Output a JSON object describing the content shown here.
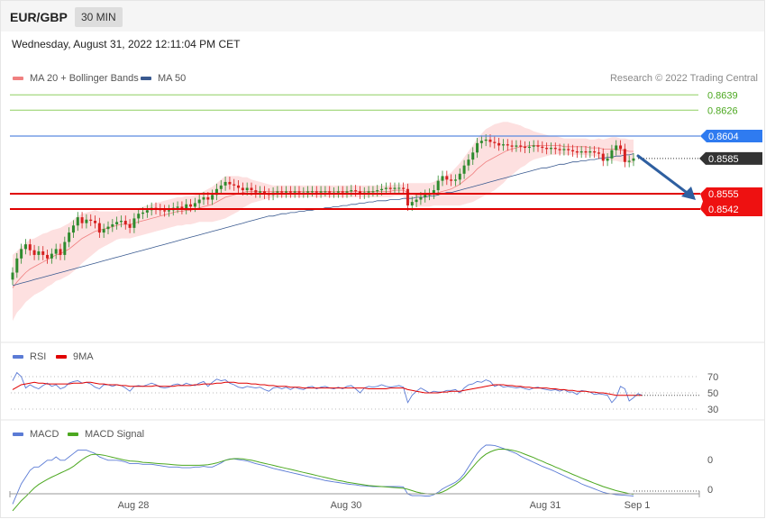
{
  "header": {
    "pair": "EUR/GBP",
    "timeframe": "30 MIN"
  },
  "date_text": "Wednesday, August 31, 2022 12:11:04 PM CET",
  "credit": "Research © 2022 Trading Central",
  "colors": {
    "ma20": "#f08080",
    "ma50": "#3a5a90",
    "rsi": "#5b7bd5",
    "rsi_ma": "#e00000",
    "macd": "#5b7bd5",
    "macd_signal": "#4ca820",
    "bull": "#2e8b2e",
    "bear": "#d62020",
    "resistance": "#8fcf60",
    "pivot": "#5a8ae0",
    "support": "#e00000",
    "band_fill": "#fcd6d6",
    "arrow": "#2e5fa0"
  },
  "chart_data": [
    {
      "type": "candlestick",
      "legend": [
        "MA 20 + Bollinger Bands",
        "MA 50"
      ],
      "legend_placement": "top-left",
      "x_ticks": [
        "Aug 28",
        "Aug 30",
        "Aug 31",
        "Sep 1"
      ],
      "ylim": [
        0.847,
        0.865
      ],
      "grid": false,
      "levels": [
        {
          "label": "0.8639",
          "value": 0.8639,
          "kind": "resistance"
        },
        {
          "label": "0.8626",
          "value": 0.8626,
          "kind": "resistance"
        },
        {
          "label": "0.8604",
          "value": 0.8604,
          "kind": "pivot"
        },
        {
          "label": "0.8585",
          "value": 0.8585,
          "kind": "current"
        },
        {
          "label": "0.8555",
          "value": 0.8555,
          "kind": "support"
        },
        {
          "label": "0.8542",
          "value": 0.8542,
          "kind": "support"
        }
      ],
      "close": [
        0.8488,
        0.85,
        0.8508,
        0.8512,
        0.8507,
        0.8503,
        0.8506,
        0.8503,
        0.85,
        0.8504,
        0.8508,
        0.8503,
        0.8514,
        0.8522,
        0.8528,
        0.8535,
        0.853,
        0.8533,
        0.8532,
        0.853,
        0.8522,
        0.8525,
        0.8527,
        0.8529,
        0.8531,
        0.8532,
        0.8529,
        0.8526,
        0.8534,
        0.8538,
        0.8539,
        0.8541,
        0.8543,
        0.8542,
        0.8541,
        0.854,
        0.8541,
        0.8543,
        0.8544,
        0.8542,
        0.8546,
        0.8544,
        0.8547,
        0.855,
        0.8552,
        0.855,
        0.8554,
        0.8559,
        0.8562,
        0.8565,
        0.8563,
        0.8562,
        0.856,
        0.8558,
        0.856,
        0.8558,
        0.8556,
        0.8557,
        0.8555,
        0.8554,
        0.8556,
        0.8557,
        0.8556,
        0.8557,
        0.8556,
        0.8557,
        0.8556,
        0.8556,
        0.8557,
        0.8557,
        0.8556,
        0.8557,
        0.8557,
        0.8556,
        0.8556,
        0.8557,
        0.8556,
        0.8557,
        0.8558,
        0.8557,
        0.8555,
        0.8556,
        0.8557,
        0.8557,
        0.8558,
        0.8559,
        0.856,
        0.8559,
        0.856,
        0.856,
        0.8559,
        0.8545,
        0.8548,
        0.855,
        0.8552,
        0.8554,
        0.8555,
        0.8558,
        0.8566,
        0.857,
        0.8567,
        0.8566,
        0.8567,
        0.8572,
        0.8579,
        0.8584,
        0.859,
        0.8598,
        0.86,
        0.8601,
        0.8599,
        0.8598,
        0.8596,
        0.8597,
        0.8596,
        0.8595,
        0.8596,
        0.8595,
        0.8594,
        0.8595,
        0.8596,
        0.8595,
        0.8594,
        0.8593,
        0.8594,
        0.8593,
        0.8592,
        0.8593,
        0.8592,
        0.8591,
        0.859,
        0.8591,
        0.859,
        0.8591,
        0.859,
        0.8589,
        0.8583,
        0.8585,
        0.8592,
        0.8596,
        0.8593,
        0.8582,
        0.8583,
        0.8585
      ],
      "ma20": [
        0.8475,
        0.848,
        0.8484,
        0.8488,
        0.8491,
        0.8493,
        0.8495,
        0.8497,
        0.8499,
        0.8501,
        0.8503,
        0.8504,
        0.8506,
        0.8508,
        0.8511,
        0.8514,
        0.8517,
        0.8519,
        0.8521,
        0.8523,
        0.8524,
        0.8525,
        0.8526,
        0.8527,
        0.8528,
        0.8529,
        0.8529,
        0.8529,
        0.853,
        0.8531,
        0.8532,
        0.8533,
        0.8534,
        0.8535,
        0.8536,
        0.8537,
        0.8538,
        0.8539,
        0.854,
        0.854,
        0.8541,
        0.8541,
        0.8542,
        0.8543,
        0.8544,
        0.8545,
        0.8546,
        0.8548,
        0.855,
        0.8552,
        0.8553,
        0.8554,
        0.8555,
        0.8556,
        0.8557,
        0.8557,
        0.8557,
        0.8557,
        0.8557,
        0.8557,
        0.8557,
        0.8557,
        0.8557,
        0.8557,
        0.8557,
        0.8557,
        0.8557,
        0.8557,
        0.8557,
        0.8557,
        0.8557,
        0.8557,
        0.8557,
        0.8557,
        0.8557,
        0.8557,
        0.8557,
        0.8557,
        0.8557,
        0.8557,
        0.8557,
        0.8557,
        0.8557,
        0.8557,
        0.8557,
        0.8557,
        0.8557,
        0.8557,
        0.8558,
        0.8558,
        0.8558,
        0.8556,
        0.8555,
        0.8554,
        0.8554,
        0.8554,
        0.8554,
        0.8555,
        0.8556,
        0.8557,
        0.8558,
        0.8559,
        0.8561,
        0.8563,
        0.8566,
        0.8569,
        0.8572,
        0.8576,
        0.8579,
        0.8582,
        0.8584,
        0.8586,
        0.8588,
        0.859,
        0.8592,
        0.8593,
        0.8594,
        0.8595,
        0.8595,
        0.8596,
        0.8596,
        0.8596,
        0.8596,
        0.8596,
        0.8596,
        0.8596,
        0.8596,
        0.8595,
        0.8595,
        0.8595,
        0.8595,
        0.8595,
        0.8595,
        0.8594,
        0.8594,
        0.8594,
        0.8593,
        0.8593,
        0.8593,
        0.8593,
        0.8592,
        0.8592,
        0.8591,
        0.8591
      ],
      "band_width": [
        0.0028,
        0.0026,
        0.0026,
        0.0025,
        0.0025,
        0.0024,
        0.0024,
        0.0024,
        0.0023,
        0.0023,
        0.0022,
        0.0022,
        0.0022,
        0.0022,
        0.0022,
        0.0022,
        0.0021,
        0.002,
        0.0019,
        0.0018,
        0.0016,
        0.0015,
        0.0014,
        0.0013,
        0.0012,
        0.0012,
        0.0012,
        0.0012,
        0.0012,
        0.0012,
        0.0012,
        0.0012,
        0.0012,
        0.0012,
        0.0012,
        0.0012,
        0.0012,
        0.0012,
        0.0012,
        0.0012,
        0.0012,
        0.0012,
        0.0012,
        0.0012,
        0.0013,
        0.0014,
        0.0015,
        0.0016,
        0.0017,
        0.0018,
        0.0017,
        0.0016,
        0.0015,
        0.0013,
        0.0012,
        0.001,
        0.0009,
        0.0008,
        0.0007,
        0.0006,
        0.0005,
        0.0005,
        0.0005,
        0.0005,
        0.0005,
        0.0005,
        0.0005,
        0.0005,
        0.0005,
        0.0005,
        0.0005,
        0.0005,
        0.0005,
        0.0005,
        0.0005,
        0.0005,
        0.0005,
        0.0005,
        0.0005,
        0.0005,
        0.0005,
        0.0005,
        0.0005,
        0.0005,
        0.0005,
        0.0005,
        0.0005,
        0.0005,
        0.0005,
        0.0005,
        0.0005,
        0.0008,
        0.0009,
        0.001,
        0.001,
        0.001,
        0.001,
        0.001,
        0.0011,
        0.0012,
        0.0013,
        0.0014,
        0.0016,
        0.0018,
        0.002,
        0.0022,
        0.0024,
        0.0026,
        0.0027,
        0.0028,
        0.0028,
        0.0028,
        0.0027,
        0.0026,
        0.0024,
        0.0022,
        0.002,
        0.0018,
        0.0016,
        0.0014,
        0.0012,
        0.0011,
        0.001,
        0.0009,
        0.0008,
        0.0008,
        0.0007,
        0.0007,
        0.0007,
        0.0007,
        0.0007,
        0.0007,
        0.0007,
        0.0007,
        0.0007,
        0.0008,
        0.0008,
        0.0009,
        0.001,
        0.001,
        0.001,
        0.001,
        0.001,
        0.001
      ],
      "ma50": [
        0.8477,
        0.8478,
        0.8479,
        0.848,
        0.8481,
        0.8482,
        0.8483,
        0.8484,
        0.8485,
        0.8486,
        0.8487,
        0.8488,
        0.8489,
        0.849,
        0.8491,
        0.8492,
        0.8493,
        0.8494,
        0.8495,
        0.8496,
        0.8497,
        0.8498,
        0.8499,
        0.85,
        0.8501,
        0.8502,
        0.8503,
        0.8504,
        0.8505,
        0.8506,
        0.8507,
        0.8508,
        0.8509,
        0.851,
        0.8511,
        0.8512,
        0.8513,
        0.8514,
        0.8515,
        0.8516,
        0.8517,
        0.8518,
        0.8519,
        0.852,
        0.8521,
        0.8522,
        0.8523,
        0.8524,
        0.8525,
        0.8526,
        0.8527,
        0.8528,
        0.8529,
        0.853,
        0.8531,
        0.8532,
        0.8533,
        0.8534,
        0.8535,
        0.8536,
        0.8536,
        0.8537,
        0.8538,
        0.8538,
        0.8539,
        0.8539,
        0.854,
        0.854,
        0.8541,
        0.8541,
        0.8542,
        0.8542,
        0.8543,
        0.8543,
        0.8544,
        0.8544,
        0.8545,
        0.8545,
        0.8546,
        0.8546,
        0.8547,
        0.8547,
        0.8548,
        0.8548,
        0.8549,
        0.8549,
        0.8549,
        0.855,
        0.855,
        0.855,
        0.8551,
        0.8551,
        0.8551,
        0.8552,
        0.8552,
        0.8552,
        0.8553,
        0.8553,
        0.8554,
        0.8555,
        0.8556,
        0.8556,
        0.8557,
        0.8558,
        0.8559,
        0.856,
        0.8561,
        0.8562,
        0.8563,
        0.8564,
        0.8565,
        0.8566,
        0.8567,
        0.8568,
        0.8569,
        0.857,
        0.8571,
        0.8572,
        0.8573,
        0.8574,
        0.8575,
        0.8576,
        0.8577,
        0.8577,
        0.8578,
        0.8579,
        0.858,
        0.858,
        0.8581,
        0.8582,
        0.8582,
        0.8583,
        0.8583,
        0.8584,
        0.8584,
        0.8585,
        0.8585,
        0.8586,
        0.8586,
        0.8587,
        0.8587,
        0.8588,
        0.8588,
        0.8589
      ]
    },
    {
      "type": "line",
      "legend": [
        "RSI",
        "9MA"
      ],
      "legend_placement": "top-left",
      "yticks": [
        70,
        50,
        30
      ],
      "ylim": [
        25,
        80
      ],
      "rsi": [
        65,
        75,
        70,
        56,
        60,
        57,
        55,
        59,
        62,
        58,
        60,
        55,
        57,
        62,
        64,
        65,
        62,
        63,
        61,
        57,
        55,
        60,
        60,
        58,
        60,
        59,
        56,
        52,
        58,
        59,
        58,
        60,
        62,
        60,
        57,
        56,
        57,
        60,
        61,
        59,
        62,
        60,
        59,
        62,
        64,
        58,
        63,
        67,
        65,
        66,
        62,
        60,
        57,
        56,
        58,
        57,
        56,
        57,
        54,
        52,
        56,
        57,
        55,
        57,
        54,
        57,
        55,
        54,
        57,
        58,
        55,
        57,
        58,
        56,
        55,
        57,
        55,
        58,
        59,
        55,
        50,
        56,
        58,
        57,
        58,
        60,
        58,
        57,
        58,
        59,
        57,
        38,
        47,
        52,
        56,
        53,
        50,
        52,
        51,
        51,
        53,
        53,
        54,
        50,
        56,
        60,
        61,
        64,
        63,
        66,
        64,
        58,
        60,
        57,
        58,
        57,
        56,
        57,
        55,
        54,
        56,
        57,
        55,
        54,
        53,
        54,
        52,
        54,
        51,
        51,
        48,
        53,
        52,
        51,
        48,
        49,
        48,
        47,
        38,
        44,
        58,
        55,
        40,
        44,
        49,
        47
      ],
      "rsi_ma": [
        54,
        57,
        60,
        61,
        62,
        63,
        62,
        62,
        61,
        61,
        61,
        61,
        61,
        61,
        62,
        62,
        62,
        63,
        63,
        62,
        61,
        61,
        60,
        60,
        60,
        59,
        59,
        58,
        58,
        58,
        58,
        58,
        58,
        59,
        58,
        58,
        58,
        58,
        59,
        59,
        59,
        59,
        60,
        60,
        61,
        61,
        61,
        62,
        62,
        63,
        63,
        63,
        62,
        62,
        62,
        61,
        61,
        60,
        60,
        59,
        59,
        58,
        58,
        58,
        57,
        57,
        57,
        56,
        56,
        56,
        56,
        56,
        56,
        56,
        56,
        56,
        56,
        56,
        56,
        56,
        56,
        56,
        55,
        55,
        55,
        55,
        55,
        56,
        56,
        56,
        56,
        54,
        53,
        52,
        51,
        50,
        50,
        50,
        50,
        51,
        51,
        52,
        52,
        52,
        53,
        54,
        55,
        56,
        57,
        58,
        59,
        60,
        60,
        60,
        59,
        59,
        58,
        58,
        57,
        57,
        56,
        56,
        56,
        56,
        55,
        55,
        54,
        54,
        53,
        53,
        52,
        52,
        52,
        51,
        51,
        50,
        50,
        49,
        48,
        47,
        47,
        47,
        47,
        47,
        47,
        47
      ]
    },
    {
      "type": "line",
      "legend": [
        "MACD",
        "MACD Signal"
      ],
      "legend_placement": "top-left",
      "yticks": [
        "0",
        "0"
      ],
      "macd": [
        -0.6,
        -0.3,
        0.0,
        0.2,
        0.4,
        0.5,
        0.5,
        0.6,
        0.7,
        0.7,
        0.8,
        0.7,
        0.7,
        0.8,
        0.9,
        1.0,
        1.0,
        1.0,
        0.95,
        0.9,
        0.8,
        0.75,
        0.7,
        0.7,
        0.7,
        0.68,
        0.65,
        0.6,
        0.6,
        0.6,
        0.58,
        0.58,
        0.58,
        0.56,
        0.54,
        0.52,
        0.5,
        0.5,
        0.5,
        0.48,
        0.48,
        0.48,
        0.5,
        0.5,
        0.52,
        0.5,
        0.5,
        0.56,
        0.62,
        0.7,
        0.74,
        0.74,
        0.72,
        0.7,
        0.68,
        0.64,
        0.6,
        0.57,
        0.54,
        0.5,
        0.46,
        0.43,
        0.4,
        0.37,
        0.34,
        0.31,
        0.28,
        0.25,
        0.22,
        0.19,
        0.16,
        0.13,
        0.1,
        0.08,
        0.06,
        0.04,
        0.02,
        0.0,
        -0.02,
        -0.03,
        -0.05,
        -0.06,
        -0.07,
        -0.08,
        -0.08,
        -0.08,
        -0.08,
        -0.08,
        -0.08,
        -0.08,
        -0.09,
        -0.3,
        -0.35,
        -0.35,
        -0.35,
        -0.36,
        -0.36,
        -0.32,
        -0.25,
        -0.15,
        -0.08,
        -0.02,
        0.05,
        0.15,
        0.3,
        0.5,
        0.7,
        0.9,
        1.05,
        1.15,
        1.15,
        1.14,
        1.1,
        1.05,
        1.0,
        0.95,
        0.9,
        0.82,
        0.76,
        0.7,
        0.64,
        0.58,
        0.52,
        0.47,
        0.42,
        0.36,
        0.3,
        0.24,
        0.18,
        0.12,
        0.07,
        0.0,
        -0.05,
        -0.1,
        -0.15,
        -0.2,
        -0.25,
        -0.28,
        -0.3,
        -0.32,
        -0.33,
        -0.34,
        -0.35,
        -0.36
      ],
      "macd_signal": [
        -0.8,
        -0.65,
        -0.5,
        -0.38,
        -0.25,
        -0.12,
        -0.02,
        0.06,
        0.13,
        0.2,
        0.26,
        0.32,
        0.38,
        0.44,
        0.52,
        0.62,
        0.72,
        0.8,
        0.86,
        0.88,
        0.87,
        0.85,
        0.82,
        0.79,
        0.76,
        0.73,
        0.7,
        0.68,
        0.67,
        0.66,
        0.64,
        0.63,
        0.62,
        0.61,
        0.6,
        0.59,
        0.58,
        0.57,
        0.56,
        0.55,
        0.55,
        0.55,
        0.55,
        0.55,
        0.56,
        0.57,
        0.59,
        0.62,
        0.66,
        0.7,
        0.73,
        0.75,
        0.75,
        0.74,
        0.72,
        0.7,
        0.67,
        0.64,
        0.61,
        0.58,
        0.55,
        0.52,
        0.49,
        0.46,
        0.43,
        0.4,
        0.37,
        0.34,
        0.31,
        0.28,
        0.25,
        0.22,
        0.19,
        0.16,
        0.13,
        0.1,
        0.08,
        0.05,
        0.03,
        0.01,
        -0.01,
        -0.03,
        -0.05,
        -0.06,
        -0.07,
        -0.08,
        -0.09,
        -0.1,
        -0.11,
        -0.12,
        -0.13,
        -0.16,
        -0.2,
        -0.24,
        -0.27,
        -0.29,
        -0.3,
        -0.3,
        -0.28,
        -0.24,
        -0.18,
        -0.1,
        -0.02,
        0.08,
        0.2,
        0.35,
        0.5,
        0.65,
        0.78,
        0.88,
        0.95,
        1.0,
        1.03,
        1.03,
        1.02,
        1.0,
        0.97,
        0.93,
        0.88,
        0.83,
        0.78,
        0.72,
        0.67,
        0.61,
        0.56,
        0.5,
        0.45,
        0.39,
        0.34,
        0.28,
        0.23,
        0.17,
        0.12,
        0.07,
        0.02,
        -0.03,
        -0.08,
        -0.12,
        -0.16,
        -0.2,
        -0.23,
        -0.26,
        -0.29,
        -0.31
      ]
    }
  ]
}
